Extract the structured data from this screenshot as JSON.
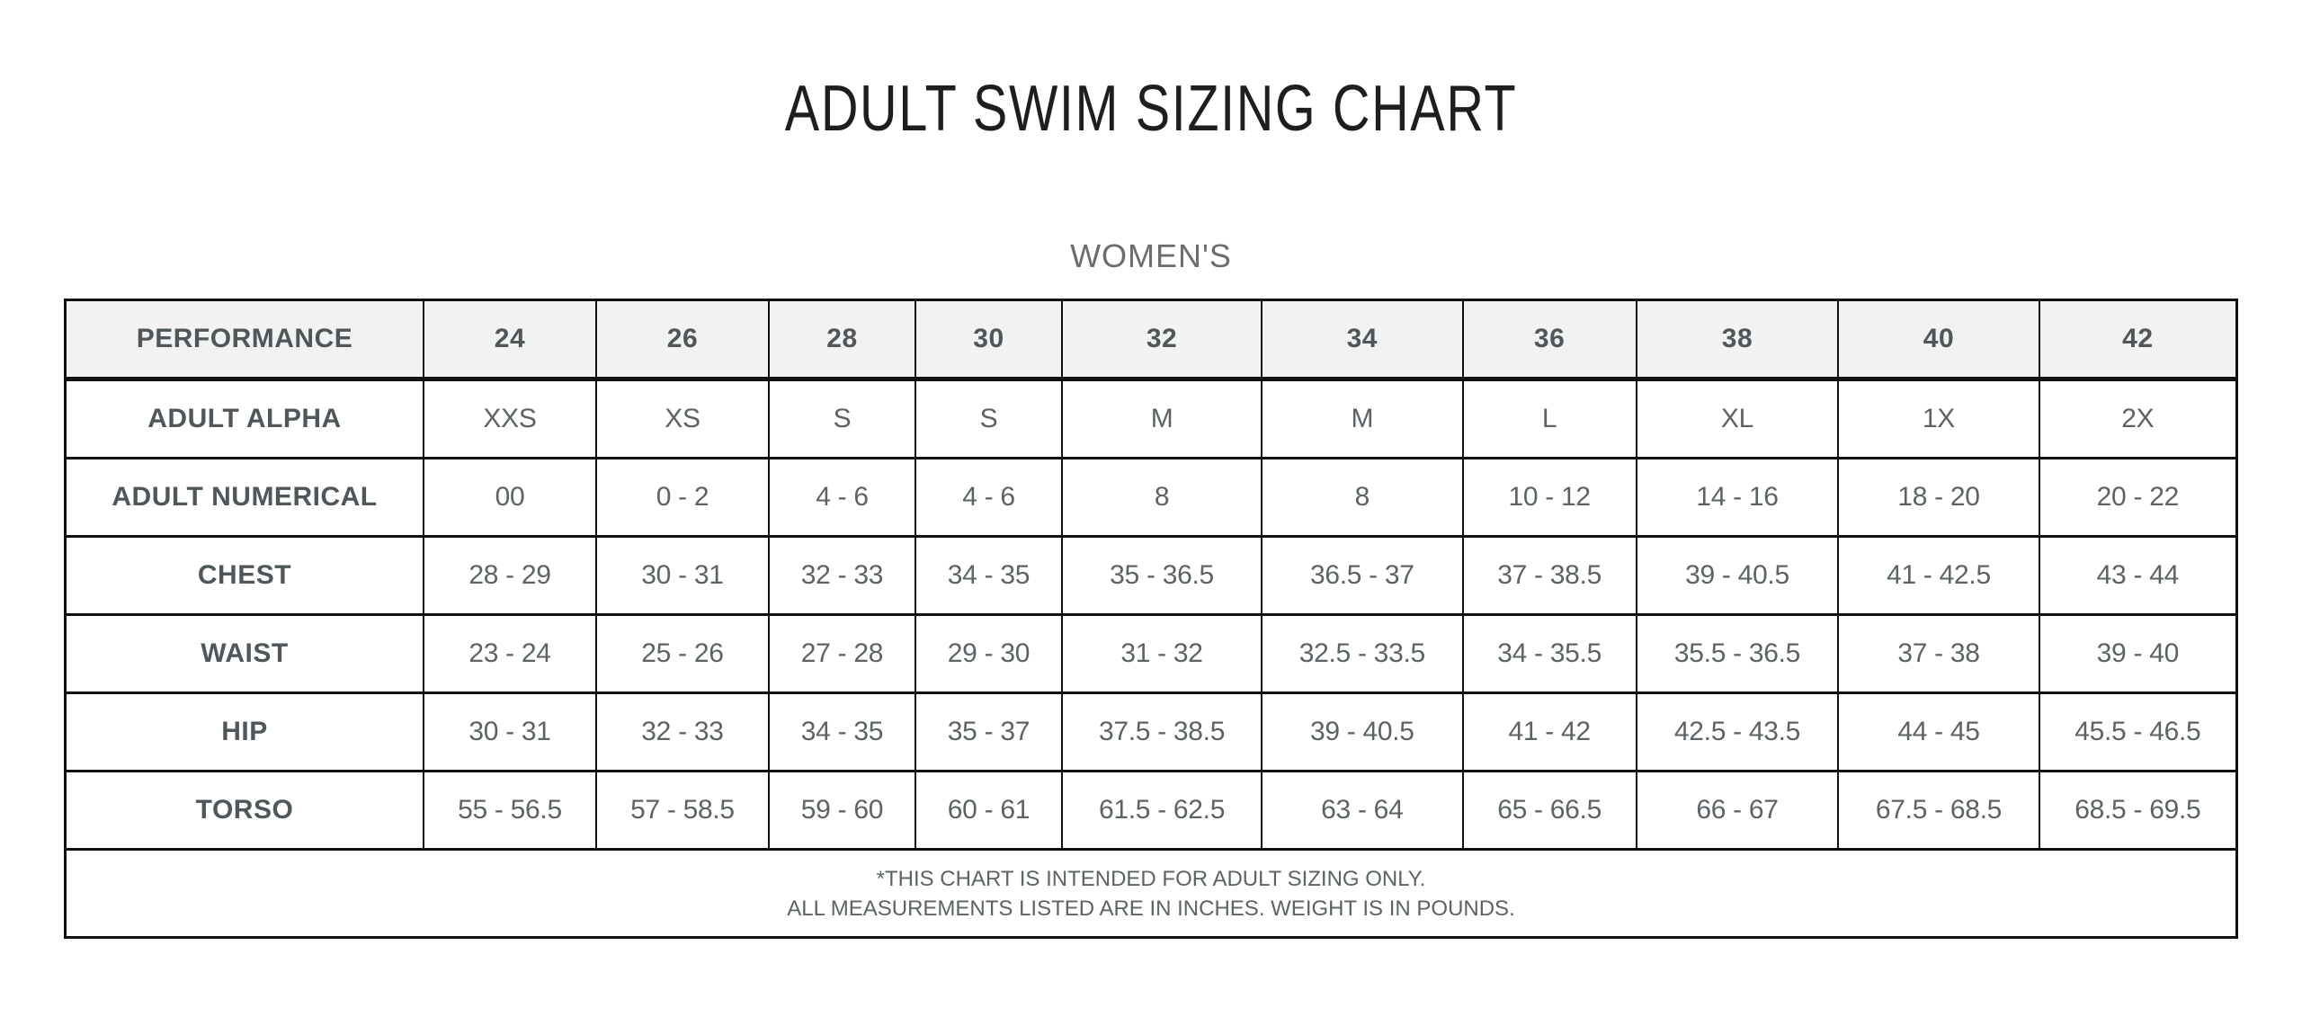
{
  "colors": {
    "page_bg": "#ffffff",
    "header_row_bg": "#f2f2f2",
    "border": "#111111",
    "title_text": "#1e1e1e",
    "subtitle_text": "#6c6c6c",
    "label_text": "#4f575b",
    "value_text": "#5c6366"
  },
  "chart_data": {
    "type": "table",
    "title": "ADULT SWIM SIZING CHART",
    "subtitle": "WOMEN'S",
    "header_row": [
      "PERFORMANCE",
      "24",
      "26",
      "28",
      "30",
      "32",
      "34",
      "36",
      "38",
      "40",
      "42"
    ],
    "rows": [
      {
        "label": "ADULT ALPHA",
        "values": [
          "XXS",
          "XS",
          "S",
          "S",
          "M",
          "M",
          "L",
          "XL",
          "1X",
          "2X"
        ]
      },
      {
        "label": "ADULT NUMERICAL",
        "values": [
          "00",
          "0 - 2",
          "4 - 6",
          "4 - 6",
          "8",
          "8",
          "10 - 12",
          "14 - 16",
          "18 - 20",
          "20 - 22"
        ]
      },
      {
        "label": "CHEST",
        "values": [
          "28 - 29",
          "30 - 31",
          "32 - 33",
          "34 - 35",
          "35 - 36.5",
          "36.5 - 37",
          "37 - 38.5",
          "39 - 40.5",
          "41 - 42.5",
          "43 - 44"
        ]
      },
      {
        "label": "WAIST",
        "values": [
          "23 - 24",
          "25 - 26",
          "27 - 28",
          "29 - 30",
          "31 - 32",
          "32.5 - 33.5",
          "34 - 35.5",
          "35.5 - 36.5",
          "37 - 38",
          "39 - 40"
        ]
      },
      {
        "label": "HIP",
        "values": [
          "30 - 31",
          "32 - 33",
          "34 - 35",
          "35 - 37",
          "37.5 - 38.5",
          "39 - 40.5",
          "41 - 42",
          "42.5 - 43.5",
          "44 - 45",
          "45.5 - 46.5"
        ]
      },
      {
        "label": "TORSO",
        "values": [
          "55 - 56.5",
          "57 - 58.5",
          "59 - 60",
          "60 - 61",
          "61.5 - 62.5",
          "63 - 64",
          "65 - 66.5",
          "66 - 67",
          "67.5 - 68.5",
          "68.5 - 69.5"
        ]
      }
    ],
    "footnotes": [
      "*THIS CHART IS INTENDED FOR ADULT SIZING ONLY.",
      "ALL MEASUREMENTS LISTED ARE IN INCHES. WEIGHT IS IN POUNDS."
    ]
  }
}
